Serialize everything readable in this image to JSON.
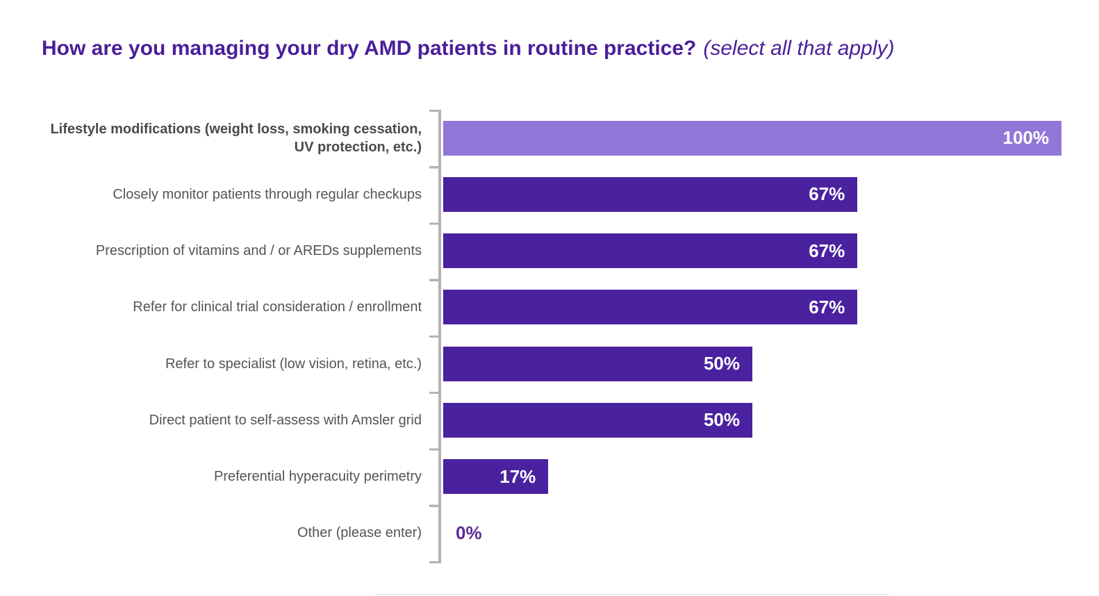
{
  "title": {
    "text": "How are you managing your dry AMD patients in routine practice?",
    "note": "(select all that apply)"
  },
  "colors": {
    "title_purple": "#4b1e9b",
    "bar_dark_purple": "#4a22a0",
    "bar_light_purple": "#9277d8",
    "category_label_gray": "#545454",
    "axis_gray": "#b5b2b6",
    "value_label_in_bar": "#ffffff",
    "value_label_outside": "#5c2a94"
  },
  "chart_data": {
    "type": "bar",
    "orientation": "horizontal",
    "title": "How are you managing your dry AMD patients in routine practice? (select all that apply)",
    "categories": [
      "Lifestyle modifications (weight loss, smoking cessation, UV protection, etc.)",
      "Closely monitor patients through regular checkups",
      "Prescription of vitamins and / or AREDs supplements",
      "Refer for clinical trial consideration / enrollment",
      "Refer to specialist (low vision, retina, etc.)",
      "Direct patient to self-assess with Amsler grid",
      "Preferential hyperacuity perimetry",
      "Other (please enter)"
    ],
    "values": [
      100,
      67,
      67,
      67,
      50,
      50,
      17,
      0
    ],
    "value_labels": [
      "100%",
      "67%",
      "67%",
      "67%",
      "50%",
      "50%",
      "17%",
      "0%"
    ],
    "bar_colors": [
      "#9277d8",
      "#4a22a0",
      "#4a22a0",
      "#4a22a0",
      "#4a22a0",
      "#4a22a0",
      "#4a22a0",
      "#4a22a0"
    ],
    "xlabel": "",
    "ylabel": "",
    "xlim": [
      0,
      100
    ],
    "grid": "off",
    "legend": "none",
    "highlighted_category_index": 0
  }
}
